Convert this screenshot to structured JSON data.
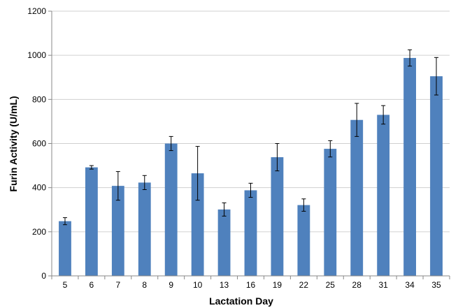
{
  "chart_data": {
    "type": "bar",
    "title": "",
    "xlabel": "Lactation Day",
    "ylabel": "Furin Activity (U/mL)",
    "ylim": [
      0,
      1200
    ],
    "yticks": [
      0,
      200,
      400,
      600,
      800,
      1000,
      1200
    ],
    "grid": true,
    "categories": [
      "5",
      "6",
      "7",
      "8",
      "9",
      "10",
      "13",
      "16",
      "19",
      "22",
      "25",
      "28",
      "31",
      "34",
      "35"
    ],
    "values": [
      248,
      492,
      408,
      423,
      600,
      465,
      301,
      388,
      538,
      321,
      576,
      707,
      730,
      988,
      905
    ],
    "error": [
      16,
      8,
      65,
      32,
      32,
      122,
      30,
      32,
      62,
      28,
      37,
      75,
      42,
      37,
      85
    ],
    "bar_color": "#4f81bd"
  }
}
